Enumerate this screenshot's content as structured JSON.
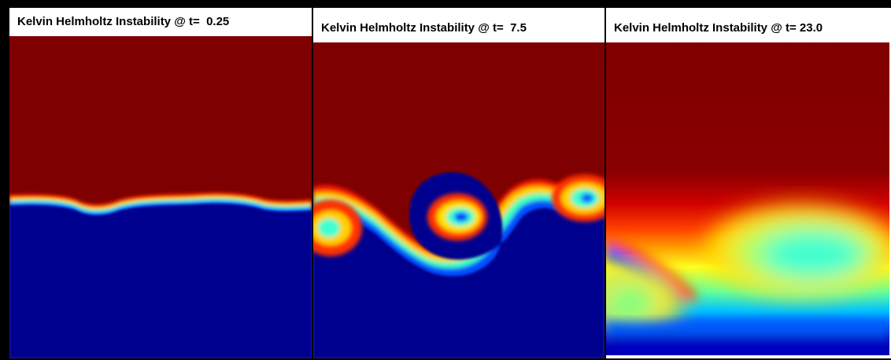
{
  "panels": [
    {
      "title": "Kelvin Helmholtz Instability @ t=  0.25"
    },
    {
      "title": "Kelvin Helmholtz Instability @ t=  7.5"
    },
    {
      "title": "Kelvin Helmholtz Instability @ t= 23.0"
    }
  ],
  "colors": {
    "upper_fluid": "#7f0000",
    "lower_fluid": "#00008f",
    "colormap": "jet"
  }
}
